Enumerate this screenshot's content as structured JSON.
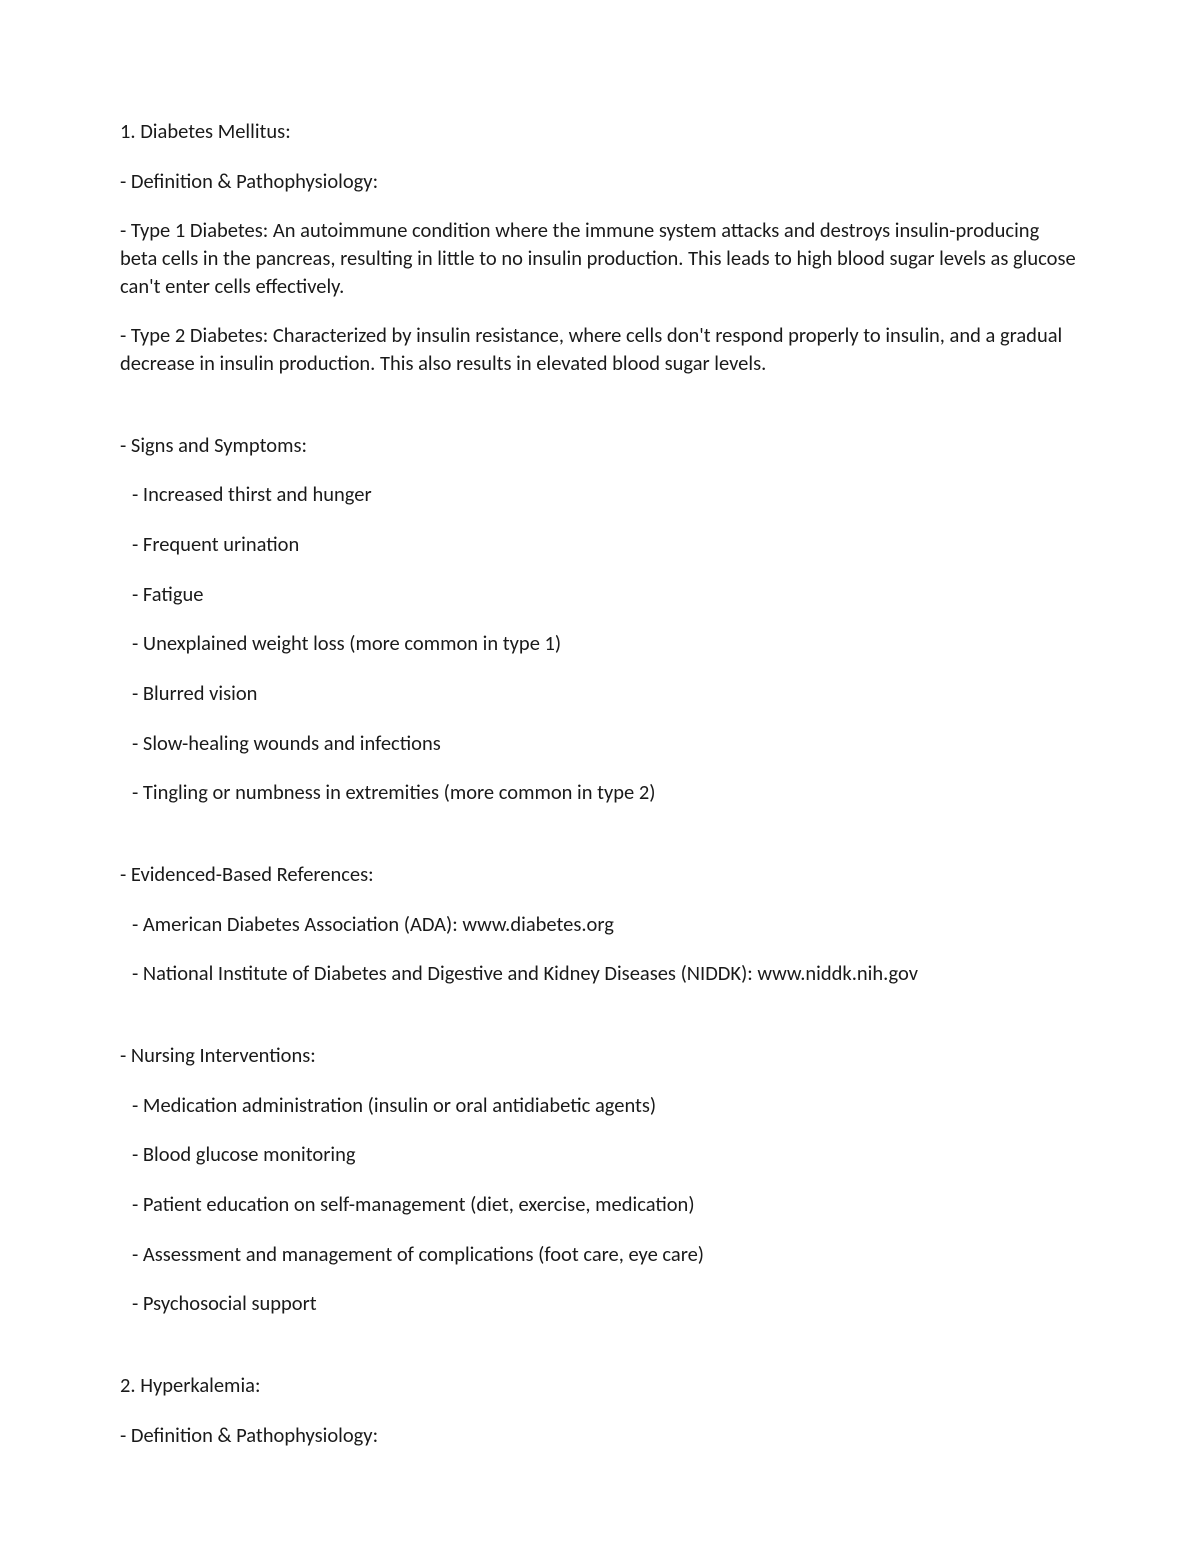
{
  "textColor": "#1a1a1a",
  "backgroundColor": "#ffffff",
  "fontFamily": "Calibri, 'Segoe UI', Arial, sans-serif",
  "fontSizePx": 20.5,
  "sections": {
    "s1": {
      "title": "1. Diabetes Mellitus:",
      "defHeader": "- Definition & Pathophysiology:",
      "defs": [
        "  - Type 1 Diabetes: An autoimmune condition where the immune system attacks and destroys insulin-producing beta cells in the pancreas, resulting in little to no insulin production. This leads to high blood sugar levels as glucose can't enter cells effectively.",
        "  - Type 2 Diabetes: Characterized by insulin resistance, where cells don't respond properly to insulin, and a gradual decrease in insulin production. This also results in elevated blood sugar levels."
      ],
      "signsHeader": "- Signs and Symptoms:",
      "signs": [
        "  - Increased thirst and hunger",
        "  - Frequent urination",
        "  - Fatigue",
        "  - Unexplained weight loss (more common in type 1)",
        "  - Blurred vision",
        "  - Slow-healing wounds and infections",
        "  - Tingling or numbness in extremities (more common in type 2)"
      ],
      "refsHeader": "- Evidenced-Based References:",
      "refs": [
        "  - American Diabetes Association (ADA): www.diabetes.org",
        "  - National Institute of Diabetes and Digestive and Kidney Diseases (NIDDK): www.niddk.nih.gov"
      ],
      "nursingHeader": "- Nursing Interventions:",
      "nursing": [
        "  - Medication administration (insulin or oral antidiabetic agents)",
        "  - Blood glucose monitoring",
        "  - Patient education on self-management (diet, exercise, medication)",
        "  - Assessment and management of complications (foot care, eye care)",
        "  - Psychosocial support"
      ]
    },
    "s2": {
      "title": "2. Hyperkalemia:",
      "defHeader": "- Definition & Pathophysiology:"
    }
  }
}
